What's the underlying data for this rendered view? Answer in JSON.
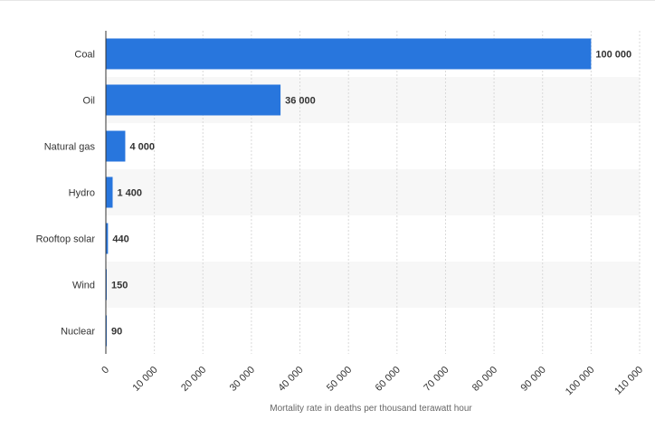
{
  "chart_data": {
    "type": "bar",
    "orientation": "horizontal",
    "categories": [
      "Coal",
      "Oil",
      "Natural gas",
      "Hydro",
      "Rooftop solar",
      "Wind",
      "Nuclear"
    ],
    "values": [
      100000,
      36000,
      4000,
      1400,
      440,
      150,
      90
    ],
    "value_labels": [
      "100 000",
      "36 000",
      "4 000",
      "1 400",
      "440",
      "150",
      "90"
    ],
    "xlabel": "Mortality rate in deaths per thousand terawatt hour",
    "ylabel": "",
    "title": "",
    "xlim": [
      0,
      110000
    ],
    "x_ticks": [
      0,
      10000,
      20000,
      30000,
      40000,
      50000,
      60000,
      70000,
      80000,
      90000,
      100000,
      110000
    ],
    "x_tick_labels": [
      "0",
      "10 000",
      "20 000",
      "30 000",
      "40 000",
      "50 000",
      "60 000",
      "70 000",
      "80 000",
      "90 000",
      "100 000",
      "110 000"
    ],
    "bar_color": "#2876dd",
    "grid": "vertical-dashed",
    "alternate_row_shading": true
  }
}
